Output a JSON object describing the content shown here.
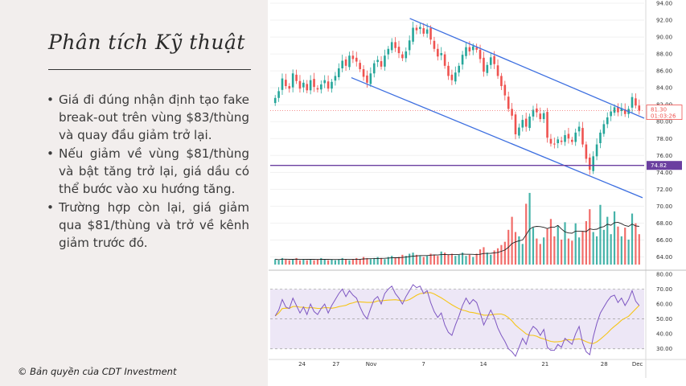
{
  "slide": {
    "title": "Phân tích Kỹ thuật",
    "bullets": [
      "Giá đi đúng nhận định tạo fake break-out trên vùng $83/thùng và quay đầu giảm trở lại.",
      "Nếu giảm về vùng $81/thùng và bật tăng trở lại, giá dầu có thể bước vào xu hướng tăng.",
      "Trường hợp còn lại, giá giảm qua $81/thùng và trở về kênh giảm trước đó."
    ],
    "copyright": "© Bản quyền của CDT Investment"
  },
  "chart_data": {
    "type": "candlestick",
    "price_axis": {
      "ticks": [
        "94.00",
        "92.00",
        "90.00",
        "88.00",
        "86.00",
        "84.00",
        "82.00",
        "80.00",
        "78.00",
        "76.00",
        "74.00",
        "72.00",
        "70.00",
        "68.00",
        "66.00",
        "64.00"
      ],
      "ylim": [
        63,
        94
      ]
    },
    "rsi_axis": {
      "ticks": [
        "80.00",
        "70.00",
        "60.00",
        "50.00",
        "40.00",
        "30.00"
      ],
      "ylim": [
        25,
        80
      ]
    },
    "x_ticks": [
      "24",
      "27",
      "Nov",
      "7",
      "14",
      "21",
      "28",
      "Dec"
    ],
    "price_label": "81.30",
    "countdown_label": "01:03:26",
    "level_label": "74.82",
    "level_value": 74.82,
    "current_value": 81.3,
    "colors": {
      "up": "#26a69a",
      "down": "#ef5350",
      "channel": "#3d6fe0",
      "level": "#6b3fa0",
      "rsi": "#7e57c2",
      "rsi_ma": "#f5c518",
      "rsi_band": "#ede7f6"
    },
    "closes": [
      82.8,
      83.6,
      85.1,
      84.2,
      83.9,
      85.7,
      84.8,
      83.9,
      84.6,
      83.7,
      84.9,
      84.1,
      83.8,
      84.4,
      84.9,
      83.9,
      84.7,
      85.4,
      86.3,
      87.2,
      86.6,
      87.8,
      87.4,
      87.1,
      86.2,
      85.3,
      84.6,
      85.7,
      86.9,
      87.3,
      86.5,
      87.8,
      88.6,
      89.4,
      88.7,
      88.1,
      87.5,
      88.3,
      89.6,
      91.1,
      90.8,
      91.2,
      90.4,
      90.9,
      89.7,
      88.6,
      87.7,
      88.1,
      86.6,
      85.4,
      84.9,
      85.8,
      86.6,
      87.9,
      88.8,
      88.3,
      88.9,
      88.5,
      87.4,
      85.9,
      86.7,
      87.6,
      86.8,
      85.4,
      84.2,
      83.1,
      81.5,
      80.7,
      78.5,
      79.3,
      80.2,
      79.4,
      80.6,
      81.4,
      81.1,
      80.3,
      81.0,
      78.1,
      77.4,
      77.3,
      77.9,
      77.6,
      78.4,
      78.0,
      77.6,
      78.7,
      79.4,
      77.3,
      75.6,
      74.3,
      75.9,
      77.3,
      78.7,
      79.7,
      80.5,
      81.2,
      81.7,
      81.1,
      81.6,
      80.9,
      81.5,
      82.9,
      81.9,
      81.3
    ],
    "volumes": [
      0.5,
      0.4,
      0.6,
      0.5,
      0.4,
      0.5,
      0.6,
      0.4,
      0.5,
      0.4,
      0.5,
      0.4,
      0.5,
      0.6,
      0.5,
      0.4,
      0.5,
      0.4,
      0.5,
      0.6,
      0.5,
      0.4,
      0.5,
      0.6,
      0.5,
      0.7,
      0.6,
      0.5,
      0.6,
      0.7,
      0.6,
      0.5,
      0.7,
      0.8,
      0.6,
      0.7,
      0.9,
      0.8,
      1.0,
      1.1,
      0.9,
      0.8,
      0.7,
      0.8,
      1.0,
      0.9,
      0.8,
      1.2,
      1.1,
      0.9,
      1.0,
      0.8,
      0.9,
      1.1,
      0.8,
      0.9,
      0.7,
      1.0,
      1.4,
      1.6,
      1.1,
      0.9,
      1.3,
      1.5,
      1.8,
      2.1,
      3.2,
      4.4,
      3.0,
      2.6,
      1.9,
      5.6,
      6.6,
      3.4,
      2.4,
      1.9,
      2.5,
      3.3,
      4.2,
      2.6,
      3.6,
      2.3,
      3.9,
      2.4,
      2.2,
      3.8,
      2.5,
      3.1,
      4.0,
      5.1,
      3.0,
      2.6,
      5.5,
      3.2,
      4.4,
      2.8,
      4.9,
      3.5,
      2.6,
      3.4,
      2.3,
      4.7,
      3.8,
      2.8
    ],
    "rsi": [
      52,
      56,
      63,
      58,
      57,
      64,
      59,
      54,
      58,
      53,
      60,
      55,
      53,
      57,
      60,
      54,
      59,
      63,
      67,
      70,
      65,
      69,
      66,
      64,
      58,
      53,
      50,
      57,
      63,
      65,
      60,
      67,
      70,
      72,
      67,
      64,
      60,
      65,
      69,
      73,
      71,
      72,
      67,
      69,
      61,
      55,
      51,
      54,
      46,
      41,
      39,
      46,
      52,
      59,
      64,
      60,
      63,
      61,
      54,
      46,
      51,
      56,
      51,
      44,
      39,
      35,
      30,
      28,
      25,
      31,
      37,
      33,
      41,
      45,
      43,
      39,
      43,
      31,
      29,
      29,
      33,
      31,
      37,
      35,
      33,
      40,
      45,
      34,
      28,
      26,
      38,
      47,
      54,
      58,
      62,
      65,
      66,
      61,
      64,
      59,
      63,
      69,
      62,
      59
    ]
  }
}
